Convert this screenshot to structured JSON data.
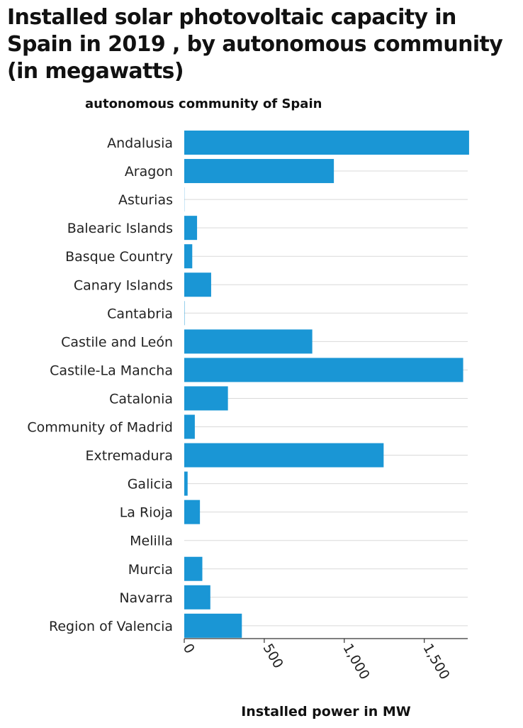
{
  "chart_data": {
    "type": "bar",
    "orientation": "horizontal",
    "title": "Installed solar photovoltaic capacity in Spain in 2019 , by autonomous community (in megawatts)",
    "ylabel": "autonomous community of Spain",
    "xlabel": "Installed power in MW",
    "categories": [
      "Andalusia",
      "Aragon",
      "Asturias",
      "Balearic Islands",
      "Basque Country",
      "Canary Islands",
      "Cantabria",
      "Castile and León",
      "Castile-La Mancha",
      "Catalonia",
      "Community of Madrid",
      "Extremadura",
      "Galicia",
      "La Rioja",
      "Melilla",
      "Murcia",
      "Navarra",
      "Region of Valencia"
    ],
    "values": [
      1780,
      935,
      1,
      80,
      50,
      168,
      2,
      800,
      1743,
      273,
      66,
      1246,
      21,
      98,
      0,
      113,
      163,
      360
    ],
    "xlim": [
      0,
      1800
    ],
    "xticks": [
      0,
      500,
      1000,
      1500
    ],
    "xtick_labels": [
      "0",
      "500",
      "1,000",
      "1,500"
    ],
    "grid": "horizontal gridlines",
    "bar_color": "#1a96d5",
    "grid_color": "#d9d9d9"
  }
}
